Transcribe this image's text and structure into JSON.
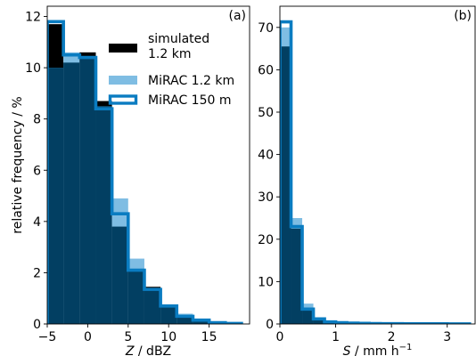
{
  "chart_data": [
    {
      "type": "bar",
      "panel_label": "(a)",
      "xlabel_var": "Z",
      "xlabel_unit": " / dBZ",
      "ylabel": "relative frequency / %",
      "xlim": [
        -5,
        20
      ],
      "ylim": [
        0,
        12.4
      ],
      "xticks": [
        -5,
        0,
        5,
        10,
        15
      ],
      "yticks": [
        0,
        2,
        4,
        6,
        8,
        10,
        12
      ],
      "bin_edges": [
        -5,
        -3,
        -1,
        1,
        3,
        5,
        7,
        9,
        11,
        13,
        15,
        17,
        19
      ],
      "legend": {
        "position": "upper-right",
        "entries": [
          {
            "label_lines": [
              "simulated",
              "1.2 km"
            ],
            "style": "fill",
            "color": "#000000"
          },
          {
            "label_lines": [
              "MiRAC 1.2 km"
            ],
            "style": "fill",
            "color": "#7fbde3"
          },
          {
            "label_lines": [
              "MiRAC 150 m"
            ],
            "style": "step",
            "color": "#0a7cc1"
          }
        ]
      },
      "series": [
        {
          "name": "simulated 1.2 km",
          "values": [
            11.7,
            10.2,
            10.6,
            8.7,
            3.8,
            2.1,
            1.45,
            0.75,
            0.25,
            0.1,
            0.05,
            0.02
          ]
        },
        {
          "name": "MiRAC 1.2 km",
          "values": [
            10.0,
            10.6,
            10.4,
            8.5,
            4.9,
            2.55,
            1.3,
            0.75,
            0.4,
            0.15,
            0.05,
            0.02
          ]
        },
        {
          "name": "MiRAC 150 m",
          "values": [
            11.8,
            10.5,
            10.4,
            8.4,
            4.3,
            2.1,
            1.35,
            0.7,
            0.3,
            0.15,
            0.05,
            0.02
          ]
        }
      ]
    },
    {
      "type": "bar",
      "panel_label": "(b)",
      "xlabel_var": "S",
      "xlabel_unit": " / mm h",
      "xlabel_sup": "−1",
      "xlim": [
        0,
        3.5
      ],
      "ylim": [
        0,
        75
      ],
      "xticks": [
        0,
        1,
        2,
        3
      ],
      "yticks": [
        0,
        10,
        20,
        30,
        40,
        50,
        60,
        70
      ],
      "bin_edges": [
        0,
        0.2,
        0.4,
        0.6,
        0.8,
        1.0,
        1.2,
        1.4,
        1.6,
        1.8,
        2.0,
        2.2,
        2.4,
        2.6,
        2.8,
        3.0,
        3.2,
        3.4
      ],
      "series": [
        {
          "name": "simulated 1.2 km",
          "values": [
            65.5,
            22.5,
            3.6,
            1.2,
            0.5,
            0.3,
            0.2,
            0.15,
            0.1,
            0.08,
            0.06,
            0.05,
            0.04,
            0.03,
            0.03,
            0.02,
            0.02
          ]
        },
        {
          "name": "MiRAC 1.2 km",
          "values": [
            70.0,
            25.0,
            4.8,
            1.5,
            0.6,
            0.35,
            0.25,
            0.2,
            0.15,
            0.1,
            0.08,
            0.06,
            0.05,
            0.05,
            0.04,
            0.03,
            0.03
          ]
        },
        {
          "name": "MiRAC 150 m",
          "values": [
            71.3,
            23.0,
            3.5,
            1.2,
            0.5,
            0.3,
            0.2,
            0.15,
            0.1,
            0.08,
            0.06,
            0.05,
            0.04,
            0.03,
            0.03,
            0.02,
            0.02
          ]
        }
      ]
    }
  ]
}
